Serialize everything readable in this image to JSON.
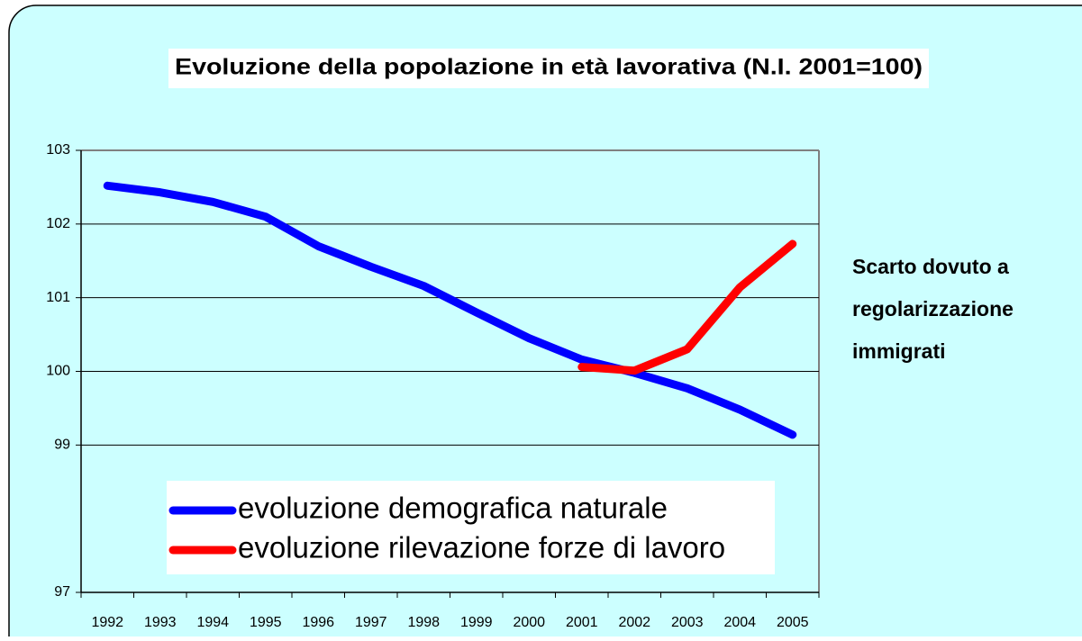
{
  "chart_data": {
    "type": "line",
    "title": "Evoluzione della popolazione in età lavorativa (N.I. 2001=100)",
    "categories": [
      "1992",
      "1993",
      "1994",
      "1995",
      "1996",
      "1997",
      "1998",
      "1999",
      "2000",
      "2001",
      "2002",
      "2003",
      "2004",
      "2005"
    ],
    "series": [
      {
        "name": "evoluzione demografica naturale",
        "color": "#0000ff",
        "values": [
          102.52,
          102.43,
          102.3,
          102.1,
          101.7,
          101.42,
          101.16,
          100.8,
          100.45,
          100.16,
          99.98,
          99.77,
          99.48,
          99.14
        ]
      },
      {
        "name": "evoluzione rilevazione forze di lavoro",
        "color": "#ff0000",
        "values": [
          null,
          null,
          null,
          null,
          null,
          null,
          null,
          null,
          null,
          100.06,
          100.01,
          100.3,
          101.14,
          101.73
        ]
      }
    ],
    "annotation": [
      "Scarto dovuto a",
      "regolarizzazione",
      "immigrati"
    ],
    "ylim": [
      97,
      103
    ],
    "yticks": [
      97,
      99,
      100,
      101,
      102,
      103
    ],
    "grid": true
  }
}
